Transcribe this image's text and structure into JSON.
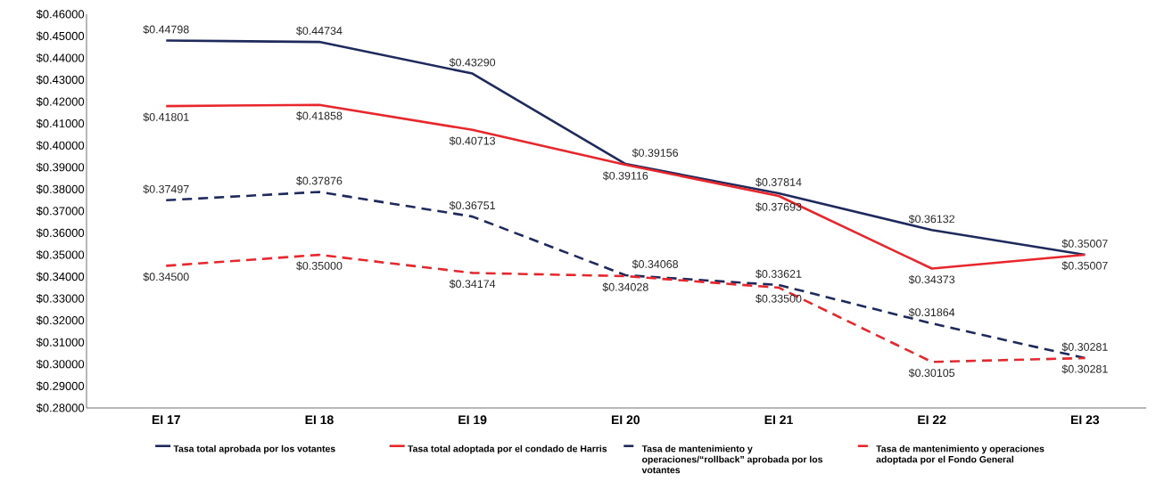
{
  "chart_data": {
    "type": "line",
    "categories": [
      "EI 17",
      "EI 18",
      "EI 19",
      "EI 20",
      "EI 21",
      "EI 22",
      "EI 23"
    ],
    "series": [
      {
        "name": "Tasa total aprobada por los votantes",
        "color": "#1f2a5c",
        "line_style": "solid",
        "values": [
          0.44798,
          0.44734,
          0.4329,
          0.39156,
          0.37814,
          0.36132,
          0.35007
        ],
        "value_labels": [
          "$0.44798",
          "$0.44734",
          "$0.43290",
          "$0.39156",
          "$0.37814",
          "$0.36132",
          "$0.35007"
        ]
      },
      {
        "name": "Tasa total adoptada por el condado de Harris",
        "color": "#e8262b",
        "line_style": "solid",
        "values": [
          0.41801,
          0.41858,
          0.40713,
          0.39116,
          0.37693,
          0.34373,
          0.35007
        ],
        "value_labels": [
          "$0.41801",
          "$0.41858",
          "$0.40713",
          "$0.39116",
          "$0.37693",
          "$0.34373",
          "$0.35007"
        ]
      },
      {
        "name": "Tasa de mantenimiento y operaciones/“rollback” aprobada por los votantes",
        "color": "#1f2a5c",
        "line_style": "dashed",
        "values": [
          0.37497,
          0.37876,
          0.36751,
          0.34068,
          0.33621,
          0.31864,
          0.30281
        ],
        "value_labels": [
          "$0.37497",
          "$0.37876",
          "$0.36751",
          "$0.34068",
          "$0.33621",
          "$0.31864",
          "$0.30281"
        ]
      },
      {
        "name": "Tasa de mantenimiento y operaciones adoptada por el Fondo General",
        "color": "#e8262b",
        "line_style": "dashed",
        "values": [
          0.345,
          0.35,
          0.34174,
          0.34028,
          0.335,
          0.30105,
          0.30281
        ],
        "value_labels": [
          "$0.34500",
          "$0.35000",
          "$0.34174",
          "$0.34028",
          "$0.33500",
          "$0.30105",
          "$0.30281"
        ]
      }
    ],
    "ylim": [
      0.28,
      0.46
    ],
    "yticks": [
      {
        "value": 0.28,
        "label": "$0.28000"
      },
      {
        "value": 0.29,
        "label": "$0.29000"
      },
      {
        "value": 0.3,
        "label": "$0.30000"
      },
      {
        "value": 0.31,
        "label": "$0.31000"
      },
      {
        "value": 0.32,
        "label": "$0.32000"
      },
      {
        "value": 0.33,
        "label": "$0.33000"
      },
      {
        "value": 0.34,
        "label": "$0.34000"
      },
      {
        "value": 0.35,
        "label": "$0.35000"
      },
      {
        "value": 0.36,
        "label": "$0.36000"
      },
      {
        "value": 0.37,
        "label": "$0.37000"
      },
      {
        "value": 0.38,
        "label": "$0.38000"
      },
      {
        "value": 0.39,
        "label": "$0.39000"
      },
      {
        "value": 0.4,
        "label": "$0.40000"
      },
      {
        "value": 0.41,
        "label": "$0.41000"
      },
      {
        "value": 0.42,
        "label": "$0.42000"
      },
      {
        "value": 0.43,
        "label": "$0.43000"
      },
      {
        "value": 0.44,
        "label": "$0.44000"
      },
      {
        "value": 0.45,
        "label": "$0.45000"
      },
      {
        "value": 0.46,
        "label": "$0.46000"
      }
    ],
    "grid": false,
    "legend": "bottom",
    "marker": "none"
  }
}
